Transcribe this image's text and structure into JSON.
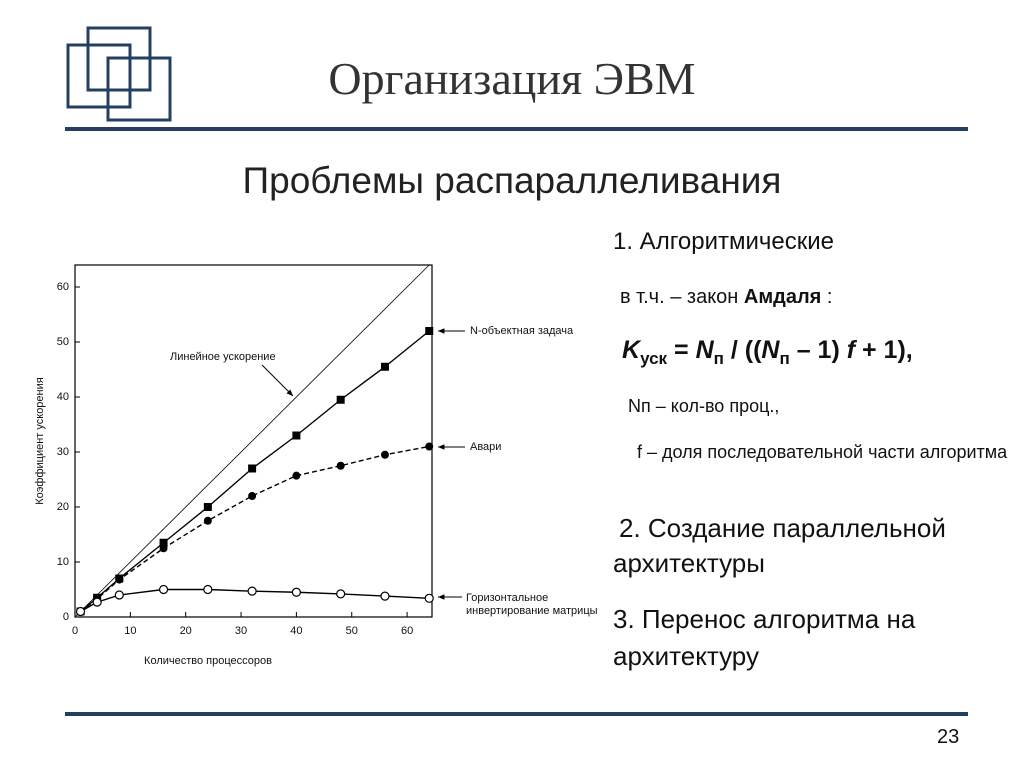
{
  "header": {
    "title": "Организация ЭВМ",
    "subtitle": "Проблемы распараллеливания",
    "page_number": "23"
  },
  "text": {
    "item1": "1. Алгоритмические",
    "amdahl": [
      "в т.ч. – закон ",
      "Амдаля",
      " :"
    ],
    "formula": [
      "K",
      "уск",
      " = ",
      "N",
      "п",
      " / ((",
      "N",
      "п",
      " – 1) ",
      "f",
      " + 1),"
    ],
    "np_def": "Nп – кол-во проц.,",
    "f_def": "f – доля последовательной части алгоритма",
    "item2": "2. Создание параллельной архитектуры",
    "item3": "3. Перенос алгоритма на архитектуру"
  },
  "chart_data": {
    "type": "line",
    "xlabel": "Количество процессоров",
    "ylabel": "Коэффициент ускорения",
    "xlim": [
      0,
      64.5
    ],
    "ylim": [
      0,
      64
    ],
    "xticks": [
      0,
      10,
      20,
      30,
      40,
      50,
      60
    ],
    "yticks": [
      0,
      10,
      20,
      30,
      40,
      50,
      60
    ],
    "grid": false,
    "series": [
      {
        "name": "Линейное ускорение",
        "color": "#000000",
        "marker": "none",
        "dash": false,
        "x": [
          0,
          64
        ],
        "values": [
          0,
          64
        ]
      },
      {
        "name": "N-объектная задача",
        "color": "#000000",
        "marker": "square",
        "dash": false,
        "x": [
          1,
          4,
          8,
          16,
          24,
          32,
          40,
          48,
          56,
          64
        ],
        "values": [
          1,
          3.5,
          7,
          13.5,
          20,
          27,
          33,
          39.5,
          45.5,
          52
        ]
      },
      {
        "name": "Авари",
        "color": "#000000",
        "marker": "circle",
        "dash": true,
        "x": [
          1,
          4,
          8,
          16,
          24,
          32,
          40,
          48,
          56,
          64
        ],
        "values": [
          1,
          3.3,
          6.8,
          12.5,
          17.5,
          22,
          25.7,
          27.5,
          29.5,
          31
        ]
      },
      {
        "name": "Горизонтальное инвертирование матрицы",
        "color": "#000000",
        "marker": "open-circle",
        "dash": false,
        "x": [
          1,
          4,
          8,
          16,
          24,
          32,
          40,
          48,
          56,
          64
        ],
        "values": [
          1,
          2.7,
          4,
          5,
          5,
          4.7,
          4.5,
          4.2,
          3.8,
          3.4
        ]
      }
    ]
  }
}
